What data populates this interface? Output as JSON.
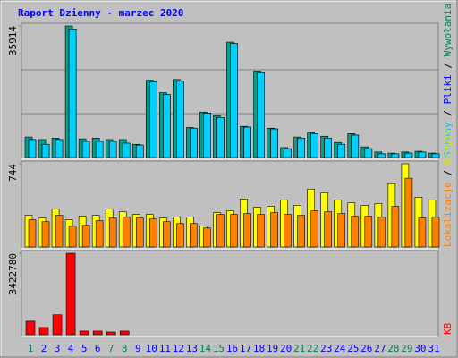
{
  "chart_data": [
    {
      "type": "bar",
      "title": "Raport Dzienny -  marzec 2020",
      "legend_separator": " / ",
      "ylim": [
        0,
        35914
      ],
      "yticks": [
        35914
      ],
      "series": [
        {
          "name": "Wywołania",
          "color": "#00a08c",
          "text_color": "#00805c",
          "values": [
            5600,
            4900,
            5300,
            35914,
            5100,
            5300,
            4900,
            4900,
            3600,
            21100,
            17700,
            21300,
            8200,
            12400,
            11400,
            31500,
            8500,
            23600,
            8000,
            2700,
            5600,
            6800,
            5800,
            4100,
            6500,
            2900,
            1500,
            1200,
            1500,
            1700,
            1200
          ]
        },
        {
          "name": "Pliki",
          "color": "#0000ff",
          "text_color": "#0000ff",
          "values": [
            4900,
            3600,
            4900,
            35100,
            4400,
            4400,
            4400,
            3900,
            3400,
            20600,
            17200,
            20900,
            8000,
            12100,
            10900,
            31100,
            8300,
            23100,
            7800,
            2400,
            5300,
            6500,
            5300,
            3600,
            6100,
            2400,
            1000,
            1000,
            1200,
            1500,
            1000
          ]
        },
        {
          "name": "Strony",
          "color": "#00d0ff",
          "text_color": "#00c0ff",
          "values": [
            4900,
            3600,
            4900,
            35100,
            4400,
            4400,
            4400,
            3900,
            3400,
            20600,
            17200,
            20900,
            8000,
            12100,
            10900,
            31100,
            8300,
            23100,
            7800,
            2400,
            5300,
            6500,
            5300,
            3600,
            6100,
            2400,
            1000,
            1000,
            1200,
            1500,
            1000
          ]
        }
      ]
    },
    {
      "type": "bar",
      "legend_separator": " / ",
      "ylim": [
        0,
        744
      ],
      "yticks": [
        744
      ],
      "series": [
        {
          "name": "Wizyty",
          "color": "#ffff00",
          "text_color": "#e0e000",
          "values": [
            283,
            259,
            340,
            243,
            275,
            283,
            340,
            315,
            291,
            291,
            259,
            267,
            267,
            186,
            307,
            323,
            429,
            356,
            364,
            421,
            372,
            518,
            485,
            421,
            396,
            372,
            388,
            566,
            744,
            445,
            421
          ]
        },
        {
          "name": "Lokalizacje",
          "color": "#ff8000",
          "text_color": "#ff8000",
          "values": [
            243,
            226,
            283,
            186,
            194,
            235,
            259,
            267,
            259,
            251,
            226,
            210,
            210,
            170,
            291,
            291,
            299,
            291,
            307,
            291,
            283,
            323,
            315,
            299,
            275,
            275,
            267,
            364,
            615,
            259,
            267
          ]
        }
      ]
    },
    {
      "type": "bar",
      "ylim": [
        0,
        3422780
      ],
      "yticks": [
        3422780
      ],
      "categories": [
        "1",
        "2",
        "3",
        "4",
        "5",
        "6",
        "7",
        "8",
        "9",
        "10",
        "11",
        "12",
        "13",
        "14",
        "15",
        "16",
        "17",
        "18",
        "19",
        "20",
        "21",
        "22",
        "23",
        "24",
        "25",
        "26",
        "27",
        "28",
        "29",
        "30",
        "31"
      ],
      "category_colors": [
        "#00805c",
        "#0000ff",
        "#0000ff",
        "#0000ff",
        "#0000ff",
        "#0000ff",
        "#00805c",
        "#00805c",
        "#0000ff",
        "#0000ff",
        "#0000ff",
        "#0000ff",
        "#0000ff",
        "#00805c",
        "#00805c",
        "#0000ff",
        "#0000ff",
        "#0000ff",
        "#0000ff",
        "#0000ff",
        "#00805c",
        "#00805c",
        "#0000ff",
        "#0000ff",
        "#0000ff",
        "#0000ff",
        "#0000ff",
        "#00805c",
        "#00805c",
        "#0000ff",
        "#0000ff"
      ],
      "series": [
        {
          "name": "KB",
          "color": "#ff0000",
          "text_color": "#ff0000",
          "values": [
            570000,
            304000,
            837000,
            3422780,
            152000,
            152000,
            114000,
            152000,
            0,
            0,
            0,
            0,
            0,
            0,
            0,
            0,
            0,
            0,
            0,
            0,
            0,
            0,
            0,
            0,
            0,
            0,
            0,
            0,
            0,
            0,
            0
          ]
        }
      ]
    }
  ]
}
